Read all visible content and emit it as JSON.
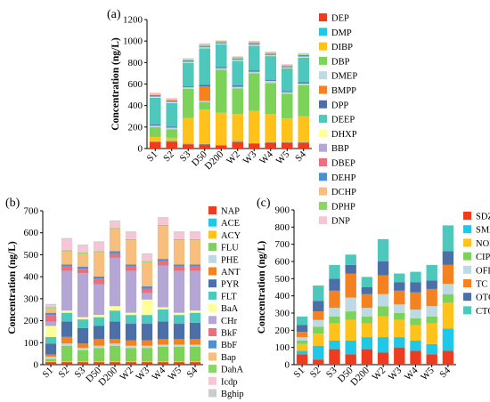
{
  "panels": [
    {
      "label": "(a)",
      "chart_data": {
        "type": "bar",
        "stacked": true,
        "ylabel": "Concentration (ng/L)",
        "ylim": [
          0,
          1200
        ],
        "yticks": [
          0,
          200,
          400,
          600,
          800,
          1000,
          1200
        ],
        "categories": [
          "S1",
          "S2",
          "S3",
          "D50",
          "D200",
          "W2",
          "W3",
          "W4",
          "W5",
          "S4"
        ],
        "legend_position": "right",
        "series": [
          {
            "name": "DEP",
            "color": "#f03c1e",
            "values": [
              58,
              62,
              40,
              38,
              28,
              60,
              45,
              55,
              55,
              55
            ]
          },
          {
            "name": "DMP",
            "color": "#1ec8e6",
            "values": [
              10,
              8,
              5,
              5,
              5,
              10,
              5,
              5,
              5,
              5
            ]
          },
          {
            "name": "DIBP",
            "color": "#ffc21a",
            "values": [
              40,
              30,
              240,
              320,
              300,
              250,
              300,
              260,
              220,
              240
            ]
          },
          {
            "name": "DBP",
            "color": "#7dd35a",
            "values": [
              90,
              80,
              270,
              70,
              400,
              240,
              350,
              290,
              230,
              290
            ]
          },
          {
            "name": "DMEP",
            "color": "#bdd9e3",
            "values": [
              15,
              15,
              15,
              10,
              15,
              15,
              15,
              20,
              15,
              15
            ]
          },
          {
            "name": "BMPP",
            "color": "#f58220",
            "values": [
              0,
              0,
              0,
              135,
              0,
              0,
              0,
              0,
              0,
              0
            ]
          },
          {
            "name": "DPP",
            "color": "#4d6fa8",
            "values": [
              10,
              10,
              8,
              15,
              10,
              12,
              12,
              10,
              10,
              12
            ]
          },
          {
            "name": "DEEP",
            "color": "#4ec7bd",
            "values": [
              250,
              220,
              220,
              340,
              210,
              230,
              230,
              220,
              210,
              230
            ]
          },
          {
            "name": "DHXP",
            "color": "#ffff99",
            "values": [
              5,
              5,
              5,
              5,
              5,
              5,
              5,
              5,
              5,
              5
            ]
          },
          {
            "name": "BBP",
            "color": "#b4a7d6",
            "values": [
              5,
              5,
              5,
              5,
              5,
              5,
              5,
              5,
              5,
              5
            ]
          },
          {
            "name": "DBEP",
            "color": "#e8707f",
            "values": [
              2,
              2,
              2,
              2,
              2,
              2,
              2,
              2,
              2,
              2
            ]
          },
          {
            "name": "DEHP",
            "color": "#4f8fd0",
            "values": [
              12,
              10,
              10,
              10,
              10,
              10,
              12,
              10,
              10,
              10
            ]
          },
          {
            "name": "DCHP",
            "color": "#f7be7d",
            "values": [
              10,
              10,
              8,
              10,
              8,
              10,
              10,
              10,
              8,
              10
            ]
          },
          {
            "name": "DPHP",
            "color": "#8ad66a",
            "values": [
              5,
              5,
              5,
              5,
              5,
              5,
              5,
              5,
              5,
              5
            ]
          },
          {
            "name": "DNP",
            "color": "#f7c6d6",
            "values": [
              8,
              8,
              8,
              10,
              5,
              5,
              5,
              5,
              5,
              5
            ]
          }
        ]
      }
    },
    {
      "label": "(b)",
      "chart_data": {
        "type": "bar",
        "stacked": true,
        "ylabel": "Concentration (ng/L)",
        "ylim": [
          0,
          700
        ],
        "yticks": [
          0,
          100,
          200,
          300,
          400,
          500,
          600,
          700
        ],
        "categories": [
          "S1",
          "S2",
          "S3",
          "D50",
          "D200",
          "W2",
          "W3",
          "W4",
          "W5",
          "S4"
        ],
        "legend_position": "right",
        "series": [
          {
            "name": "NAP",
            "color": "#f03c1e",
            "values": [
              10,
              10,
              10,
              10,
              10,
              10,
              10,
              10,
              10,
              10
            ]
          },
          {
            "name": "ACE",
            "color": "#1ec8e6",
            "values": [
              3,
              3,
              3,
              3,
              3,
              3,
              3,
              3,
              3,
              3
            ]
          },
          {
            "name": "ACY",
            "color": "#ffc21a",
            "values": [
              3,
              3,
              3,
              3,
              3,
              3,
              3,
              3,
              3,
              3
            ]
          },
          {
            "name": "FLU",
            "color": "#7dd35a",
            "values": [
              10,
              70,
              50,
              60,
              70,
              60,
              60,
              65,
              65,
              65
            ]
          },
          {
            "name": "PHE",
            "color": "#bdd9e3",
            "values": [
              10,
              10,
              10,
              10,
              10,
              10,
              10,
              10,
              10,
              10
            ]
          },
          {
            "name": "ANT",
            "color": "#f58220",
            "values": [
              10,
              30,
              20,
              30,
              20,
              25,
              25,
              25,
              25,
              25
            ]
          },
          {
            "name": "PYR",
            "color": "#4d6fa8",
            "values": [
              50,
              70,
              70,
              60,
              80,
              75,
              75,
              80,
              70,
              75
            ]
          },
          {
            "name": "FLT",
            "color": "#4ec7bd",
            "values": [
              30,
              40,
              40,
              40,
              50,
              40,
              40,
              55,
              40,
              45
            ]
          },
          {
            "name": "BaA",
            "color": "#ffff99",
            "values": [
              50,
              10,
              10,
              10,
              20,
              10,
              70,
              10,
              10,
              10
            ]
          },
          {
            "name": "CHr",
            "color": "#b4a7d6",
            "values": [
              20,
              180,
              200,
              140,
              220,
              190,
              30,
              190,
              190,
              180
            ]
          },
          {
            "name": "BkF",
            "color": "#e8707f",
            "values": [
              30,
              20,
              20,
              25,
              20,
              20,
              20,
              20,
              20,
              20
            ]
          },
          {
            "name": "BbF",
            "color": "#4f8fd0",
            "values": [
              10,
              10,
              10,
              10,
              10,
              10,
              10,
              10,
              10,
              10
            ]
          },
          {
            "name": "Bap",
            "color": "#f7be7d",
            "values": [
              20,
              60,
              60,
              110,
              100,
              110,
              110,
              150,
              110,
              110
            ]
          },
          {
            "name": "DahA",
            "color": "#8ad66a",
            "values": [
              5,
              5,
              5,
              5,
              5,
              5,
              5,
              5,
              5,
              5
            ]
          },
          {
            "name": "Icdp",
            "color": "#f7c6d6",
            "values": [
              10,
              50,
              30,
              40,
              30,
              30,
              30,
              30,
              30,
              30
            ]
          },
          {
            "name": "Bghip",
            "color": "#cccccc",
            "values": [
              5,
              5,
              5,
              5,
              5,
              5,
              5,
              5,
              5,
              5
            ]
          }
        ]
      }
    },
    {
      "label": "(c)",
      "chart_data": {
        "type": "bar",
        "stacked": true,
        "ylabel": "Concentration (ng/L)",
        "ylim": [
          0,
          900
        ],
        "yticks": [
          0,
          100,
          200,
          300,
          400,
          500,
          600,
          700,
          800,
          900
        ],
        "categories": [
          "S1",
          "S2",
          "S3",
          "D50",
          "D200",
          "W2",
          "W3",
          "W4",
          "W5",
          "S4"
        ],
        "legend_position": "right",
        "series": [
          {
            "name": "SDZ",
            "color": "#f03c1e",
            "values": [
              60,
              30,
              90,
              60,
              90,
              70,
              100,
              80,
              60,
              80
            ]
          },
          {
            "name": "SMX",
            "color": "#1ec8e6",
            "values": [
              20,
              80,
              50,
              80,
              70,
              90,
              60,
              60,
              60,
              130
            ]
          },
          {
            "name": "NOR",
            "color": "#ffc21a",
            "values": [
              40,
              70,
              100,
              120,
              80,
              120,
              100,
              90,
              120,
              150
            ]
          },
          {
            "name": "CIP",
            "color": "#7dd35a",
            "values": [
              20,
              40,
              40,
              50,
              40,
              60,
              40,
              40,
              40,
              50
            ]
          },
          {
            "name": "OFL",
            "color": "#bdd9e3",
            "values": [
              20,
              40,
              50,
              80,
              50,
              70,
              50,
              50,
              60,
              60
            ]
          },
          {
            "name": "TC",
            "color": "#f58220",
            "values": [
              30,
              50,
              100,
              140,
              80,
              110,
              80,
              100,
              100,
              110
            ]
          },
          {
            "name": "OTC",
            "color": "#4d6fa8",
            "values": [
              40,
              60,
              70,
              50,
              40,
              80,
              50,
              60,
              50,
              80
            ]
          },
          {
            "name": "CTC",
            "color": "#4ec7bd",
            "values": [
              50,
              90,
              80,
              60,
              60,
              130,
              50,
              60,
              90,
              150
            ]
          }
        ]
      }
    }
  ]
}
